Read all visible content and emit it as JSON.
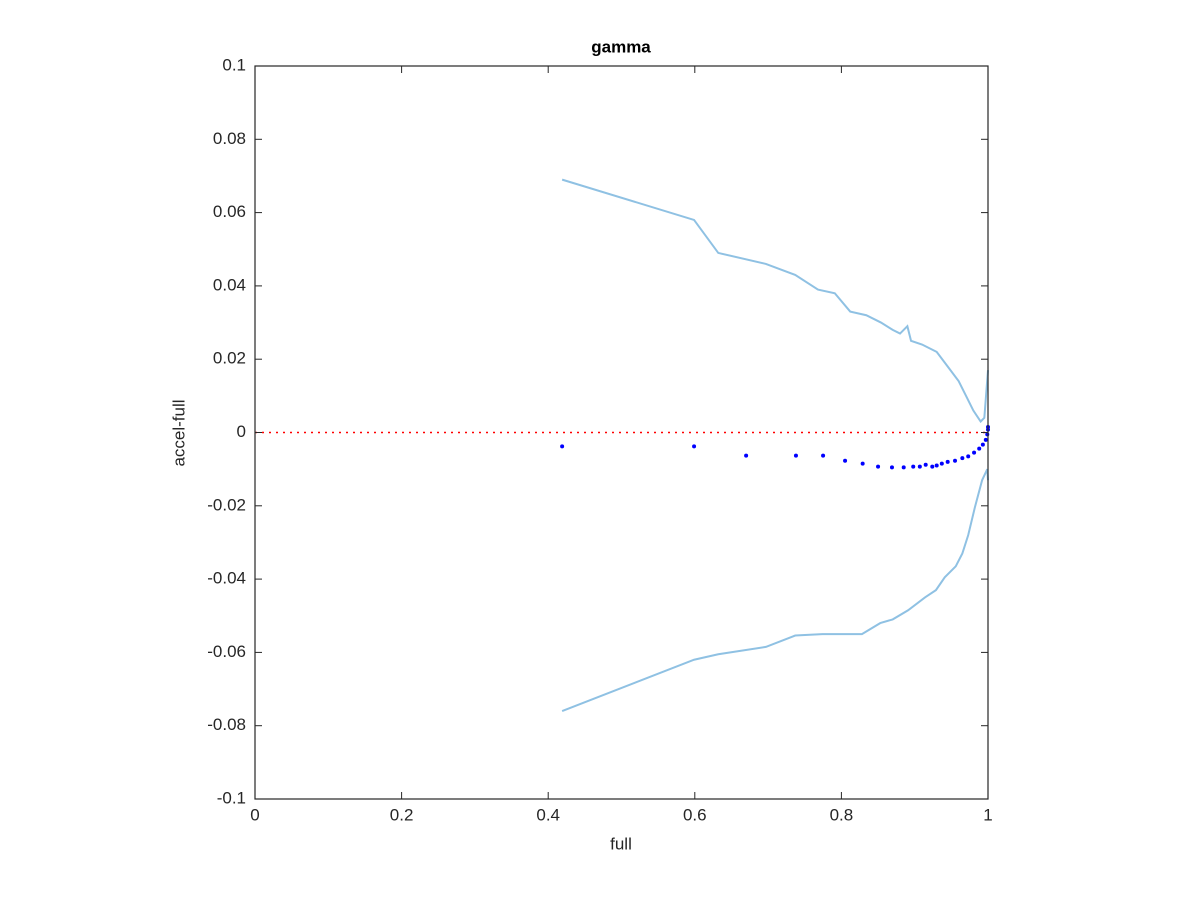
{
  "chart_data": {
    "type": "line",
    "title": "gamma",
    "x_label": "full",
    "y_label": "accel-full",
    "xlim": [
      0,
      1
    ],
    "ylim": [
      -0.1,
      0.1
    ],
    "xticks": [
      0,
      0.2,
      0.4,
      0.6,
      0.8,
      1
    ],
    "yticks": [
      -0.1,
      -0.08,
      -0.06,
      -0.04,
      -0.02,
      0,
      0.02,
      0.04,
      0.06,
      0.08,
      0.1
    ],
    "grid": false,
    "series": [
      {
        "type": "line",
        "color": "#8fc1e3",
        "linestyle": "solid",
        "x": [
          0.419,
          0.599,
          0.632,
          0.697,
          0.737,
          0.768,
          0.791,
          0.812,
          0.834,
          0.854,
          0.87,
          0.88,
          0.89,
          0.895,
          0.91,
          0.93,
          0.945,
          0.96,
          0.97,
          0.98,
          0.99,
          0.995,
          1
        ],
        "values": [
          0.069,
          0.058,
          0.049,
          0.046,
          0.043,
          0.039,
          0.038,
          0.033,
          0.032,
          0.03,
          0.028,
          0.027,
          0.029,
          0.025,
          0.024,
          0.022,
          0.018,
          0.014,
          0.01,
          0.006,
          0.003,
          0.004,
          0.017
        ]
      },
      {
        "type": "line",
        "color": "#8fc1e3",
        "linestyle": "solid",
        "x": [
          0.419,
          0.599,
          0.632,
          0.697,
          0.737,
          0.774,
          0.828,
          0.853,
          0.87,
          0.891,
          0.914,
          0.929,
          0.941,
          0.956,
          0.965,
          0.973,
          0.982,
          0.992,
          0.999,
          1
        ],
        "values": [
          -0.076,
          -0.062,
          -0.0605,
          -0.0585,
          -0.0554,
          -0.055,
          -0.055,
          -0.052,
          -0.051,
          -0.0485,
          -0.045,
          -0.043,
          -0.0395,
          -0.0365,
          -0.033,
          -0.028,
          -0.0205,
          -0.013,
          -0.01,
          -0.013
        ]
      },
      {
        "type": "line",
        "color": "#ff0000",
        "linestyle": "dotted",
        "x": [
          0,
          1
        ],
        "values": [
          0,
          0
        ]
      },
      {
        "type": "scatter",
        "color": "#0000ff",
        "x": [
          0.419,
          0.599,
          0.67,
          0.738,
          0.775,
          0.805,
          0.829,
          0.85,
          0.869,
          0.885,
          0.898,
          0.907,
          0.915,
          0.924,
          0.93,
          0.937,
          0.945,
          0.955,
          0.965,
          0.973,
          0.981,
          0.988,
          0.993,
          0.997,
          0.999,
          1,
          1
        ],
        "values": [
          -0.0038,
          -0.0038,
          -0.0063,
          -0.0063,
          -0.0063,
          -0.0077,
          -0.0085,
          -0.0093,
          -0.0095,
          -0.0095,
          -0.0093,
          -0.0093,
          -0.0088,
          -0.0093,
          -0.009,
          -0.0085,
          -0.008,
          -0.0077,
          -0.007,
          -0.0065,
          -0.0055,
          -0.0044,
          -0.0033,
          -0.002,
          -0.0005,
          0.0008,
          0.0015
        ]
      }
    ]
  }
}
